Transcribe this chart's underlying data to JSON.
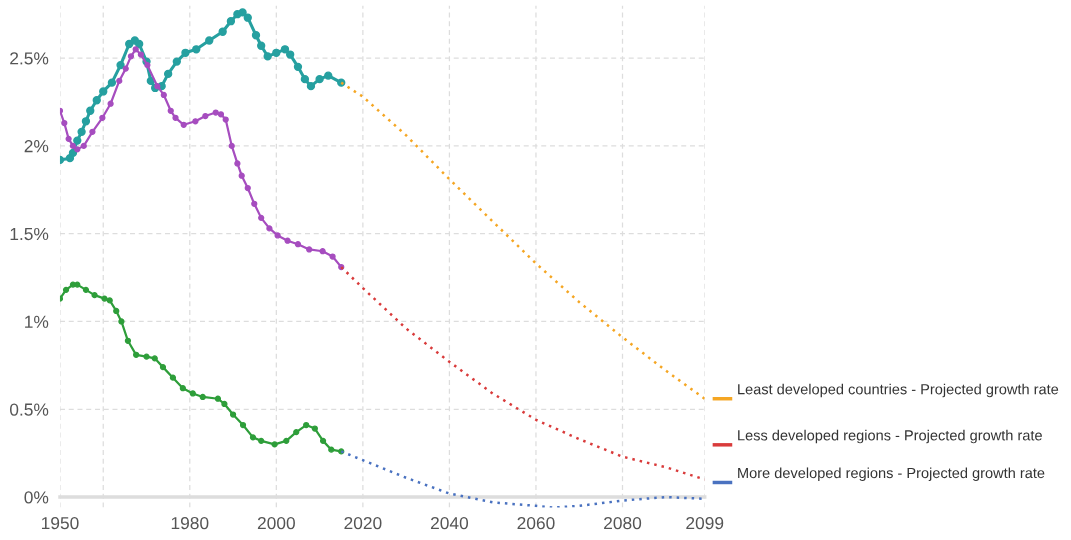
{
  "chart_data": {
    "type": "line",
    "xlim": [
      1950,
      2099
    ],
    "ylim": [
      -0.06,
      2.8
    ],
    "xticks": [
      1950,
      {
        "value": 1960,
        "label": null
      },
      1980,
      2000,
      2020,
      2040,
      2060,
      2080,
      2099
    ],
    "yticks": [
      {
        "value": 0,
        "label": "0%"
      },
      {
        "value": 0.5,
        "label": "0.5%"
      },
      {
        "value": 1,
        "label": "1%"
      },
      {
        "value": 1.5,
        "label": "1.5%"
      },
      {
        "value": 2,
        "label": "2%"
      },
      {
        "value": 2.5,
        "label": "2.5%"
      }
    ],
    "grid": true,
    "legend": "right",
    "series": [
      {
        "color": "#26a0a0",
        "marker": "circle",
        "line_style": "solid",
        "x": [
          1950,
          1952.3,
          1953,
          1954,
          1955,
          1956,
          1957,
          1958.5,
          1960,
          1962,
          1964,
          1966,
          1967.3,
          1968.3,
          1970,
          1971,
          1972,
          1973.5,
          1975,
          1977,
          1979,
          1981.5,
          1984.5,
          1987.6,
          1989.5,
          1991,
          1992.2,
          1993.4,
          1995.3,
          1996.5,
          1998,
          2000,
          2002,
          2003.2,
          2005,
          2006.6,
          2008,
          2010,
          2012,
          2015
        ],
        "values": [
          1.92,
          1.93,
          1.96,
          2.03,
          2.08,
          2.14,
          2.2,
          2.26,
          2.31,
          2.36,
          2.46,
          2.58,
          2.6,
          2.58,
          2.48,
          2.37,
          2.33,
          2.34,
          2.41,
          2.48,
          2.53,
          2.55,
          2.6,
          2.65,
          2.71,
          2.75,
          2.76,
          2.73,
          2.63,
          2.57,
          2.51,
          2.53,
          2.55,
          2.52,
          2.45,
          2.38,
          2.34,
          2.38,
          2.4,
          2.36
        ]
      },
      {
        "color": "#a64dbf",
        "marker": "circle",
        "line_style": "solid",
        "x": [
          1950,
          1951,
          1952,
          1953,
          1954,
          1955.5,
          1957.5,
          1959.8,
          1961.7,
          1963.7,
          1965.2,
          1966.4,
          1967.5,
          1968.7,
          1970.2,
          1972.5,
          1974,
          1975.6,
          1976.7,
          1978.6,
          1981.3,
          1983.6,
          1986,
          1987.2,
          1988.3,
          1989.7,
          1991,
          1992,
          1993.4,
          1994.9,
          1996.5,
          1998.4,
          2000.3,
          2002.6,
          2005,
          2007.6,
          2010.7,
          2013,
          2015
        ],
        "values": [
          2.2,
          2.13,
          2.04,
          2.0,
          1.98,
          2.0,
          2.08,
          2.16,
          2.24,
          2.37,
          2.44,
          2.51,
          2.55,
          2.52,
          2.46,
          2.34,
          2.29,
          2.2,
          2.16,
          2.12,
          2.14,
          2.17,
          2.19,
          2.18,
          2.15,
          2.0,
          1.9,
          1.83,
          1.76,
          1.67,
          1.59,
          1.53,
          1.49,
          1.46,
          1.44,
          1.41,
          1.4,
          1.37,
          1.31
        ]
      },
      {
        "color": "#2e9e3a",
        "marker": "circle",
        "line_style": "solid",
        "x": [
          1950,
          1951.4,
          1953,
          1954,
          1956,
          1958,
          1960.3,
          1961.5,
          1963,
          1964.2,
          1965.7,
          1967.6,
          1970,
          1971.9,
          1973.8,
          1976.1,
          1978.4,
          1980.7,
          1983,
          1986.5,
          1988,
          1990,
          1992.3,
          1994.6,
          1996.5,
          1999.6,
          2002.3,
          2004.6,
          2006.9,
          2008.9,
          2010.8,
          2012.7,
          2015
        ],
        "values": [
          1.13,
          1.18,
          1.21,
          1.21,
          1.18,
          1.15,
          1.13,
          1.12,
          1.06,
          1.0,
          0.89,
          0.81,
          0.8,
          0.79,
          0.74,
          0.68,
          0.62,
          0.59,
          0.57,
          0.56,
          0.53,
          0.47,
          0.41,
          0.34,
          0.32,
          0.3,
          0.32,
          0.37,
          0.41,
          0.39,
          0.32,
          0.27,
          0.26
        ]
      },
      {
        "name": "Least developed countries - Projected growth rate",
        "color": "#f5a623",
        "marker": "none",
        "line_style": "dotted",
        "x": [
          2015,
          2020,
          2030,
          2040,
          2050,
          2060,
          2070,
          2080,
          2090,
          2099
        ],
        "values": [
          2.36,
          2.28,
          2.06,
          1.81,
          1.57,
          1.33,
          1.11,
          0.91,
          0.72,
          0.56
        ]
      },
      {
        "name": "Less developed regions - Projected growth rate",
        "color": "#d93b3b",
        "marker": "none",
        "line_style": "dotted",
        "x": [
          2015,
          2020,
          2030,
          2040,
          2050,
          2060,
          2070,
          2080,
          2090,
          2099
        ],
        "values": [
          1.31,
          1.19,
          0.96,
          0.77,
          0.59,
          0.44,
          0.33,
          0.23,
          0.17,
          0.1
        ]
      },
      {
        "name": "More developed regions - Projected growth rate",
        "color": "#4a72c0",
        "marker": "none",
        "line_style": "dotted",
        "x": [
          2015,
          2020,
          2030,
          2040,
          2050,
          2060,
          2064,
          2070,
          2080,
          2090,
          2099
        ],
        "values": [
          0.26,
          0.21,
          0.11,
          0.02,
          -0.03,
          -0.05,
          -0.06,
          -0.05,
          -0.02,
          0.0,
          -0.01
        ]
      }
    ]
  }
}
